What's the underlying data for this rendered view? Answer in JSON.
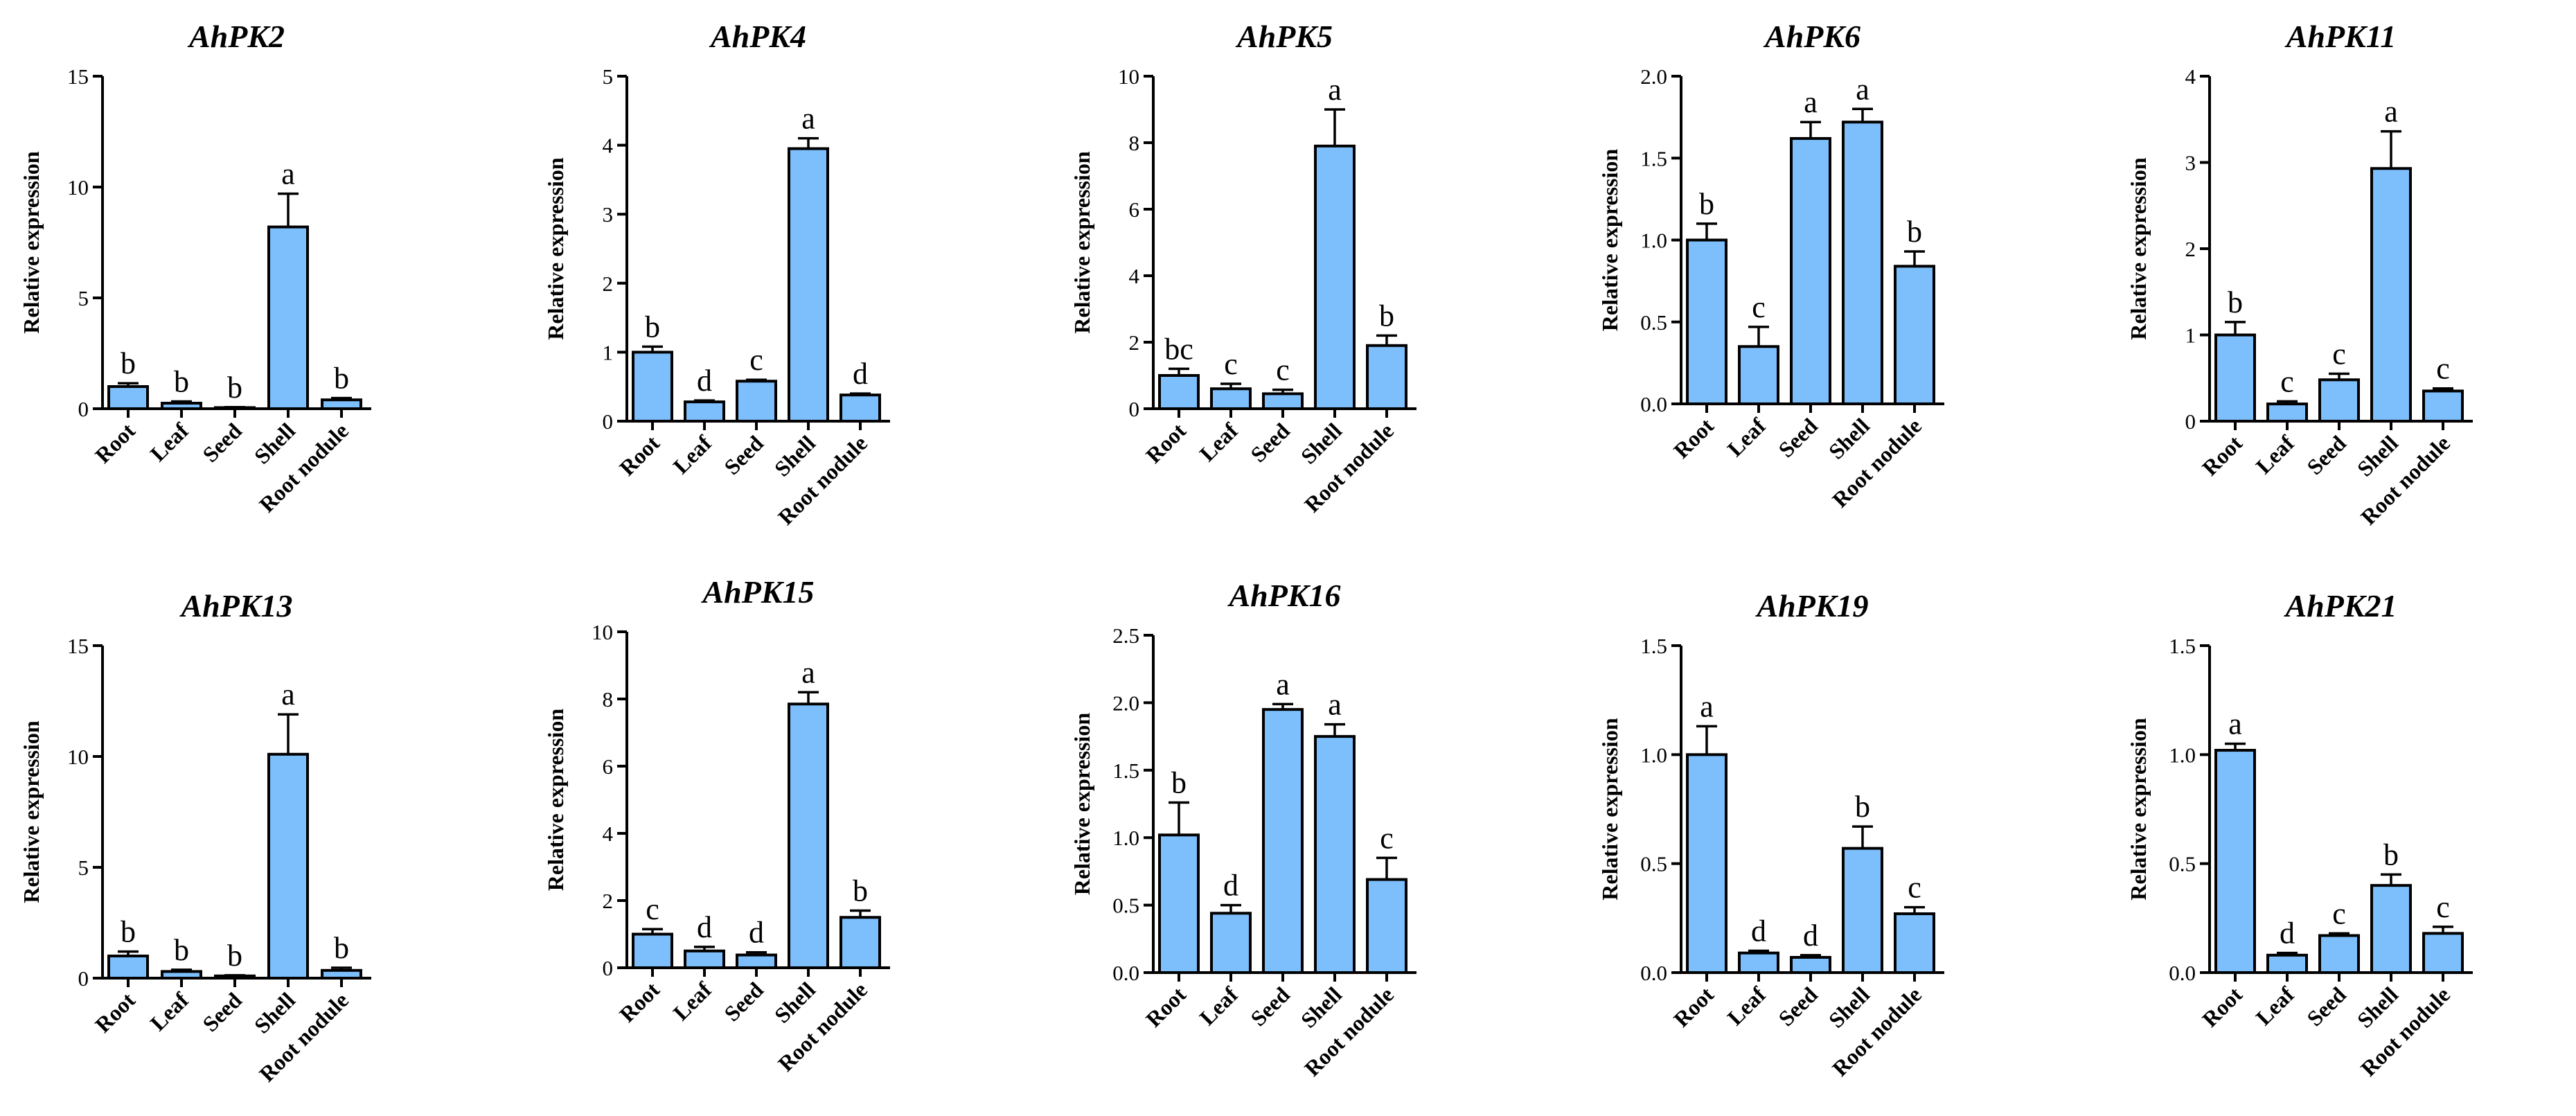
{
  "colors": {
    "bar_fill": "#7dbefc",
    "stroke": "#000000"
  },
  "chart_data": [
    {
      "type": "bar",
      "title": "AhPK2",
      "ylabel": "Relative expression",
      "categories": [
        "Root",
        "Leaf",
        "Seed",
        "Shell",
        "Root nodule"
      ],
      "values": [
        1.0,
        0.25,
        0.05,
        8.2,
        0.4
      ],
      "errors": [
        0.15,
        0.08,
        0.02,
        1.5,
        0.08
      ],
      "letters": [
        "b",
        "b",
        "b",
        "a",
        "b"
      ],
      "ylim": [
        0,
        15
      ],
      "yticks": [
        "0",
        "5",
        "10",
        "15"
      ]
    },
    {
      "type": "bar",
      "title": "AhPK4",
      "ylabel": "Relative expression",
      "categories": [
        "Root",
        "Leaf",
        "Seed",
        "Shell",
        "Root nodule"
      ],
      "values": [
        1.0,
        0.28,
        0.58,
        3.95,
        0.38
      ],
      "errors": [
        0.08,
        0.02,
        0.02,
        0.15,
        0.02
      ],
      "letters": [
        "b",
        "d",
        "c",
        "a",
        "d"
      ],
      "ylim": [
        0,
        5
      ],
      "yticks": [
        "0",
        "1",
        "2",
        "3",
        "4",
        "5"
      ]
    },
    {
      "type": "bar",
      "title": "AhPK5",
      "ylabel": "Relative expression",
      "categories": [
        "Root",
        "Leaf",
        "Seed",
        "Shell",
        "Root nodule"
      ],
      "values": [
        1.0,
        0.6,
        0.45,
        7.9,
        1.9
      ],
      "errors": [
        0.2,
        0.15,
        0.12,
        1.1,
        0.3
      ],
      "letters": [
        "bc",
        "c",
        "c",
        "a",
        "b"
      ],
      "ylim": [
        0,
        10
      ],
      "yticks": [
        "0",
        "2",
        "4",
        "6",
        "8",
        "10"
      ]
    },
    {
      "type": "bar",
      "title": "AhPK6",
      "ylabel": "Relative expression",
      "categories": [
        "Root",
        "Leaf",
        "Seed",
        "Shell",
        "Root nodule"
      ],
      "values": [
        1.0,
        0.35,
        1.62,
        1.72,
        0.84
      ],
      "errors": [
        0.1,
        0.12,
        0.1,
        0.08,
        0.09
      ],
      "letters": [
        "b",
        "c",
        "a",
        "a",
        "b"
      ],
      "ylim": [
        0,
        2.0
      ],
      "yticks": [
        "0.0",
        "0.5",
        "1.0",
        "1.5",
        "2.0"
      ]
    },
    {
      "type": "bar",
      "title": "AhPK11",
      "ylabel": "Relative expression",
      "categories": [
        "Root",
        "Leaf",
        "Seed",
        "Shell",
        "Root nodule"
      ],
      "values": [
        1.0,
        0.2,
        0.48,
        2.93,
        0.35
      ],
      "errors": [
        0.15,
        0.03,
        0.07,
        0.43,
        0.03
      ],
      "letters": [
        "b",
        "c",
        "c",
        "a",
        "c"
      ],
      "ylim": [
        0,
        4
      ],
      "yticks": [
        "0",
        "1",
        "2",
        "3",
        "4"
      ]
    },
    {
      "type": "bar",
      "title": "AhPK13",
      "ylabel": "Relative expression",
      "categories": [
        "Root",
        "Leaf",
        "Seed",
        "Shell",
        "Root nodule"
      ],
      "values": [
        1.0,
        0.3,
        0.1,
        10.1,
        0.35
      ],
      "errors": [
        0.2,
        0.08,
        0.03,
        1.8,
        0.12
      ],
      "letters": [
        "b",
        "b",
        "b",
        "a",
        "b"
      ],
      "ylim": [
        0,
        15
      ],
      "yticks": [
        "0",
        "5",
        "10",
        "15"
      ]
    },
    {
      "type": "bar",
      "title": "AhPK15",
      "ylabel": "Relative expression",
      "categories": [
        "Root",
        "Leaf",
        "Seed",
        "Shell",
        "Root nodule"
      ],
      "values": [
        1.0,
        0.5,
        0.38,
        7.85,
        1.5
      ],
      "errors": [
        0.15,
        0.12,
        0.08,
        0.35,
        0.2
      ],
      "letters": [
        "c",
        "d",
        "d",
        "a",
        "b"
      ],
      "ylim": [
        0,
        10
      ],
      "yticks": [
        "0",
        "2",
        "4",
        "6",
        "8",
        "10"
      ]
    },
    {
      "type": "bar",
      "title": "AhPK16",
      "ylabel": "Relative expression",
      "categories": [
        "Root",
        "Leaf",
        "Seed",
        "Shell",
        "Root nodule"
      ],
      "values": [
        1.02,
        0.44,
        1.95,
        1.75,
        0.69
      ],
      "errors": [
        0.24,
        0.06,
        0.04,
        0.09,
        0.16
      ],
      "letters": [
        "b",
        "d",
        "a",
        "a",
        "c"
      ],
      "ylim": [
        0,
        2.5
      ],
      "yticks": [
        "0.0",
        "0.5",
        "1.0",
        "1.5",
        "2.0",
        "2.5"
      ]
    },
    {
      "type": "bar",
      "title": "AhPK19",
      "ylabel": "Relative expression",
      "categories": [
        "Root",
        "Leaf",
        "Seed",
        "Shell",
        "Root nodule"
      ],
      "values": [
        1.0,
        0.09,
        0.07,
        0.57,
        0.27
      ],
      "errors": [
        0.13,
        0.01,
        0.01,
        0.1,
        0.03
      ],
      "letters": [
        "a",
        "d",
        "d",
        "b",
        "c"
      ],
      "ylim": [
        0,
        1.5
      ],
      "yticks": [
        "0.0",
        "0.5",
        "1.0",
        "1.5"
      ]
    },
    {
      "type": "bar",
      "title": "AhPK21",
      "ylabel": "Relative expression",
      "categories": [
        "Root",
        "Leaf",
        "Seed",
        "Shell",
        "Root nodule"
      ],
      "values": [
        1.02,
        0.08,
        0.17,
        0.4,
        0.18
      ],
      "errors": [
        0.03,
        0.01,
        0.01,
        0.05,
        0.03
      ],
      "letters": [
        "a",
        "d",
        "c",
        "b",
        "c"
      ],
      "ylim": [
        0,
        1.5
      ],
      "yticks": [
        "0.0",
        "0.5",
        "1.0",
        "1.5"
      ]
    }
  ]
}
